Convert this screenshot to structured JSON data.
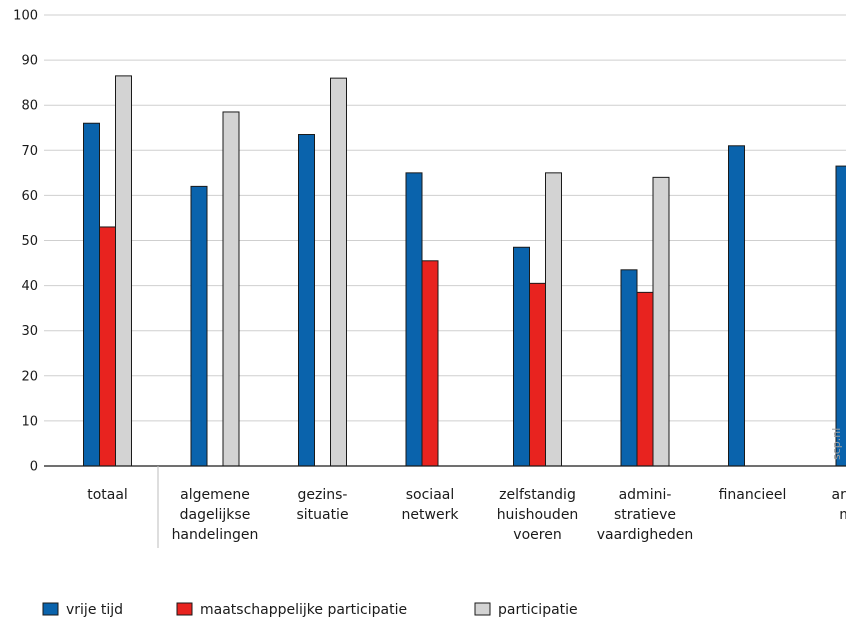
{
  "chart_data": {
    "type": "bar",
    "title": "",
    "xlabel": "",
    "ylabel": "",
    "ylim": [
      0,
      100
    ],
    "yticks": [
      0,
      10,
      20,
      30,
      40,
      50,
      60,
      70,
      80,
      90,
      100
    ],
    "grid": true,
    "legend_position": "bottom",
    "categories": [
      [
        "totaal"
      ],
      [
        "algemene",
        "dagelijkse",
        "handelingen"
      ],
      [
        "gezins-",
        "situatie"
      ],
      [
        "sociaal",
        "netwerk"
      ],
      [
        "zelfstandig",
        "huishouden",
        "voeren"
      ],
      [
        "admini-",
        "stratieve",
        "vaardigheden"
      ],
      [
        "financieel"
      ],
      [
        "arbeids-",
        "markt"
      ]
    ],
    "series": [
      {
        "name": "vrije tijd",
        "color": "#0a63ac",
        "values": [
          76,
          62,
          73.5,
          65,
          48.5,
          43.5,
          71,
          66.5
        ]
      },
      {
        "name": "maatschappelijke participatie",
        "color": "#e8231f",
        "values": [
          53,
          null,
          null,
          45.5,
          40.5,
          38.5,
          null,
          null
        ]
      },
      {
        "name": "participatie",
        "color": "#d3d3d3",
        "values": [
          86.5,
          78.5,
          86,
          null,
          65,
          64,
          null,
          null
        ]
      }
    ],
    "watermark": "scp.nl"
  }
}
